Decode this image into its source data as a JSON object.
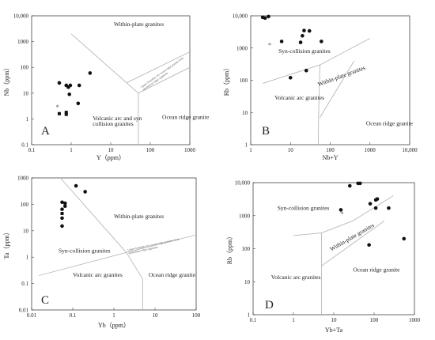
{
  "chart_data": [
    {
      "type": "scatter",
      "panel": "A",
      "xlabel": "Y（ppm）",
      "ylabel": "Nb（ppm）",
      "xscale": "log",
      "yscale": "log",
      "xlim": [
        0.1,
        1000
      ],
      "ylim": [
        0.1,
        10000
      ],
      "xticks": [
        "0.1",
        "1",
        "10",
        "100",
        "1000"
      ],
      "yticks": [
        "0.1",
        "1",
        "10",
        "100",
        "1000",
        "10,000"
      ],
      "fields": [
        {
          "label": "Within-plate granites",
          "x": 12,
          "y": 4000
        },
        {
          "label": "Volcanic arc and syn",
          "x": 3.5,
          "y": 0.9
        },
        {
          "label": "collision granites",
          "x": 3.5,
          "y": 0.55
        },
        {
          "label": "Ocean ridge granite",
          "x": 200,
          "y": 1
        }
      ],
      "boundary_note": [
        "Upper boundary for ocean-ridge granite from",
        "anomalous ridge segments"
      ],
      "boundaries": [
        [
          [
            1,
            2000
          ],
          [
            50,
            10
          ],
          [
            50,
            0.1
          ]
        ],
        [
          [
            50,
            10
          ],
          [
            1000,
            100
          ]
        ],
        [
          [
            25,
            25
          ],
          [
            1000,
            400
          ]
        ]
      ],
      "series": [
        {
          "marker": "circle",
          "points": [
            [
              0.5,
              25
            ],
            [
              0.75,
              20
            ],
            [
              0.85,
              17
            ],
            [
              0.95,
              20
            ],
            [
              0.9,
              9
            ],
            [
              1.6,
              20
            ],
            [
              1.5,
              4
            ],
            [
              3,
              60
            ]
          ]
        },
        {
          "marker": "square",
          "points": [
            [
              0.5,
              1.6
            ],
            [
              0.75,
              1.8
            ],
            [
              0.75,
              1.5
            ]
          ]
        },
        {
          "marker": "star",
          "points": [
            [
              0.45,
              2.8
            ]
          ]
        }
      ]
    },
    {
      "type": "scatter",
      "panel": "B",
      "xlabel": "Nb+Y",
      "ylabel": "Rb（ppm）",
      "xscale": "log",
      "yscale": "log",
      "xlim": [
        1,
        10000
      ],
      "ylim": [
        1,
        10000
      ],
      "xticks": [
        "1",
        "10",
        "100",
        "1000",
        "10,000"
      ],
      "yticks": [
        "1",
        "10",
        "100",
        "1000",
        "10,000"
      ],
      "fields": [
        {
          "label": "Syn-collision granites",
          "x": 5,
          "y": 700
        },
        {
          "label": "Volcanic arc granites",
          "x": 4,
          "y": 25
        },
        {
          "label": "Ocean ridge granite",
          "x": 800,
          "y": 4
        }
      ],
      "rotated_fields": [
        {
          "label": "Within-plate granites",
          "x": 200,
          "y": 120
        }
      ],
      "boundaries": [
        [
          [
            2,
            80
          ],
          [
            55,
            300
          ],
          [
            1000,
            2000
          ]
        ],
        [
          [
            55,
            300
          ],
          [
            51,
            7
          ],
          [
            50,
            1
          ]
        ],
        [
          [
            55,
            7
          ],
          [
            400,
            400
          ]
        ]
      ],
      "series": [
        {
          "marker": "circle",
          "points": [
            [
              2,
              9000
            ],
            [
              2.3,
              8500
            ],
            [
              2.8,
              9500
            ],
            [
              6,
              1600
            ],
            [
              10,
              120
            ],
            [
              18,
              1500
            ],
            [
              20,
              2400
            ],
            [
              22,
              3500
            ],
            [
              25,
              200
            ],
            [
              30,
              3400
            ],
            [
              60,
              1600
            ]
          ]
        },
        {
          "marker": "star",
          "points": [
            [
              3,
              1200
            ]
          ]
        }
      ]
    },
    {
      "type": "scatter",
      "panel": "C",
      "xlabel": "Yb（ppm）",
      "ylabel": "Ta（ppm）",
      "xscale": "log",
      "yscale": "log",
      "xlim": [
        0.01,
        100
      ],
      "ylim": [
        0.01,
        1000
      ],
      "xticks": [
        "0.01",
        "0.1",
        "1",
        "10",
        "100"
      ],
      "yticks": [
        "0.01",
        "0.1",
        "1",
        "10",
        "100",
        "1000"
      ],
      "fields": [
        {
          "label": "Within-plate granites",
          "x": 1,
          "y": 30
        },
        {
          "label": "Syn-collision granites",
          "x": 0.045,
          "y": 1.5
        },
        {
          "label": "Volcanic arc granites",
          "x": 0.1,
          "y": 0.18
        },
        {
          "label": "Ocean ridge granite",
          "x": 7,
          "y": 0.18
        }
      ],
      "boundary_note": [
        "Upper boundary for ocean-ridge granites from",
        "anomalous ridge segments"
      ],
      "boundaries": [
        [
          [
            0.05,
            1000
          ],
          [
            2,
            1.5
          ]
        ],
        [
          [
            0.015,
            0.2
          ],
          [
            2,
            1.5
          ],
          [
            100,
            7
          ]
        ],
        [
          [
            2,
            1.5
          ],
          [
            5,
            0.15
          ],
          [
            5,
            0.01
          ]
        ]
      ],
      "series": [
        {
          "marker": "circle",
          "points": [
            [
              0.055,
              120
            ],
            [
              0.065,
              110
            ],
            [
              0.055,
              65
            ],
            [
              0.065,
              85
            ],
            [
              0.055,
              30
            ],
            [
              0.055,
              15
            ],
            [
              0.12,
              500
            ],
            [
              0.2,
              300
            ]
          ]
        },
        {
          "marker": "square",
          "points": [
            [
              0.055,
              45
            ]
          ]
        }
      ]
    },
    {
      "type": "scatter",
      "panel": "D",
      "xlabel": "Yb+Ta",
      "ylabel": "Rb（ppm）",
      "xscale": "log",
      "yscale": "log",
      "xlim": [
        0.1,
        1000
      ],
      "ylim": [
        1,
        10000
      ],
      "xticks": [
        "0.1",
        "1",
        "10",
        "100",
        "1000"
      ],
      "yticks": [
        "1",
        "10",
        "100",
        "1000",
        "10,000"
      ],
      "fields": [
        {
          "label": "Syn-collision granites",
          "x": 0.4,
          "y": 1500
        },
        {
          "label": "Volcanic arc granites",
          "x": 0.28,
          "y": 12
        },
        {
          "label": "Ocean ridge granite",
          "x": 30,
          "y": 20
        }
      ],
      "rotated_fields": [
        {
          "label": "Within-plate granites",
          "x": 30,
          "y": 200
        }
      ],
      "boundaries": [
        [
          [
            1,
            250
          ],
          [
            5,
            300
          ],
          [
            30,
            700
          ],
          [
            300,
            4000
          ]
        ],
        [
          [
            5,
            300
          ],
          [
            5,
            1
          ]
        ],
        [
          [
            5,
            30
          ],
          [
            180,
            700
          ]
        ]
      ],
      "series": [
        {
          "marker": "circle",
          "points": [
            [
              15,
              1500
            ],
            [
              25,
              8000
            ],
            [
              40,
              9500
            ],
            [
              45,
              9500
            ],
            [
              80,
              2300
            ],
            [
              110,
              3000
            ],
            [
              120,
              3200
            ],
            [
              110,
              1700
            ],
            [
              75,
              130
            ],
            [
              230,
              1700
            ],
            [
              550,
              200
            ]
          ]
        },
        {
          "marker": "star",
          "points": [
            [
              16,
              1100
            ]
          ]
        }
      ]
    }
  ]
}
